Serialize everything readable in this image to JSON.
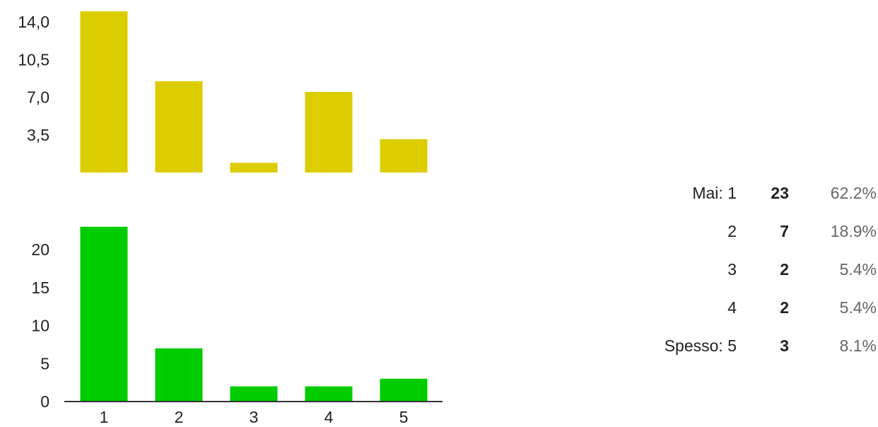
{
  "chart_data": [
    {
      "type": "bar",
      "color": "#dccd00",
      "categories": [
        "1",
        "2",
        "3",
        "4",
        "5"
      ],
      "values": [
        15,
        8.5,
        0.9,
        7.5,
        3.1
      ],
      "yticks": [
        "3,5",
        "7,0",
        "10,5",
        "14,0"
      ],
      "ytick_values": [
        3.5,
        7.0,
        10.5,
        14.0
      ],
      "ylim": [
        0,
        15
      ],
      "grid": false
    },
    {
      "type": "bar",
      "color": "#00cc00",
      "categories": [
        "1",
        "2",
        "3",
        "4",
        "5"
      ],
      "values": [
        23,
        7,
        2,
        2,
        3
      ],
      "yticks": [
        "0",
        "5",
        "10",
        "15",
        "20"
      ],
      "ytick_values": [
        0,
        5,
        10,
        15,
        20
      ],
      "ylim": [
        0,
        23
      ],
      "grid": false
    }
  ],
  "summary": {
    "rows": [
      {
        "label": "Mai: 1",
        "count": "23",
        "percent": "62.2%"
      },
      {
        "label": "2",
        "count": "7",
        "percent": "18.9%"
      },
      {
        "label": "3",
        "count": "2",
        "percent": "5.4%"
      },
      {
        "label": "4",
        "count": "2",
        "percent": "5.4%"
      },
      {
        "label": "Spesso: 5",
        "count": "3",
        "percent": "8.1%"
      }
    ]
  }
}
